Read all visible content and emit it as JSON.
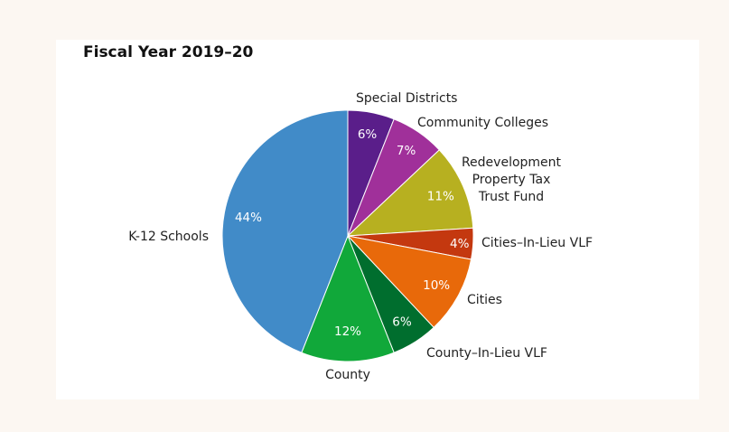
{
  "chart_data": {
    "type": "pie",
    "title": "Fiscal Year 2019–20",
    "slices": [
      {
        "label": "Special Districts",
        "value": 6,
        "pct_label": "6%",
        "color": "#5a1e8a"
      },
      {
        "label": "Community Colleges",
        "value": 7,
        "pct_label": "7%",
        "color": "#a0309a"
      },
      {
        "label": "Redevelopment\nProperty Tax\nTrust Fund",
        "value": 11,
        "pct_label": "11%",
        "color": "#b7b020"
      },
      {
        "label": "Cities–In-Lieu VLF",
        "value": 4,
        "pct_label": "4%",
        "color": "#c4380f"
      },
      {
        "label": "Cities",
        "value": 10,
        "pct_label": "10%",
        "color": "#e8690a"
      },
      {
        "label": "County–In-Lieu VLF",
        "value": 6,
        "pct_label": "6%",
        "color": "#006e2e"
      },
      {
        "label": "County",
        "value": 12,
        "pct_label": "12%",
        "color": "#11a83a"
      },
      {
        "label": "K-12 Schools",
        "value": 44,
        "pct_label": "44%",
        "color": "#418bc8"
      }
    ],
    "start_angle": "12 o'clock",
    "direction": "clockwise"
  }
}
